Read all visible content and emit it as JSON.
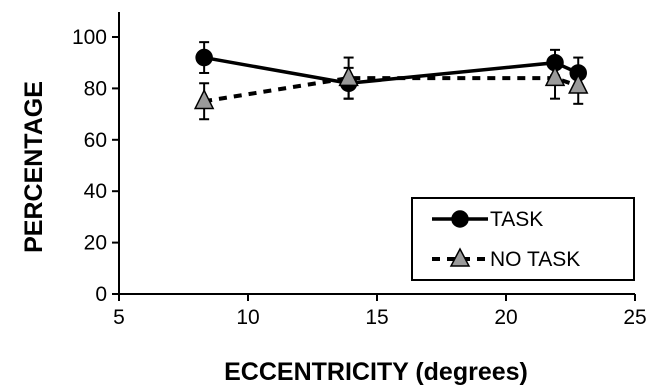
{
  "chart_data": {
    "type": "line",
    "title": "",
    "xlabel": "ECCENTRICITY (degrees)",
    "ylabel": "PERCENTAGE",
    "xlim": [
      5,
      25
    ],
    "ylim": [
      0,
      100
    ],
    "xticks": [
      5,
      10,
      15,
      20,
      25
    ],
    "yticks": [
      0,
      20,
      40,
      60,
      80,
      100
    ],
    "grid": false,
    "legend_position": "bottom-right",
    "series": [
      {
        "name": "TASK",
        "style": "solid",
        "marker": "circle",
        "color": "#000000",
        "x": [
          8.3,
          13.9,
          21.9,
          22.8
        ],
        "y": [
          92,
          82,
          90,
          86
        ],
        "err": [
          6,
          6,
          5,
          6
        ]
      },
      {
        "name": "NO TASK",
        "style": "dashed",
        "marker": "triangle",
        "color": "#9a9a9a",
        "x": [
          8.3,
          13.9,
          21.9,
          22.8
        ],
        "y": [
          75,
          84,
          84,
          81
        ],
        "err": [
          7,
          8,
          8,
          7
        ]
      }
    ]
  }
}
